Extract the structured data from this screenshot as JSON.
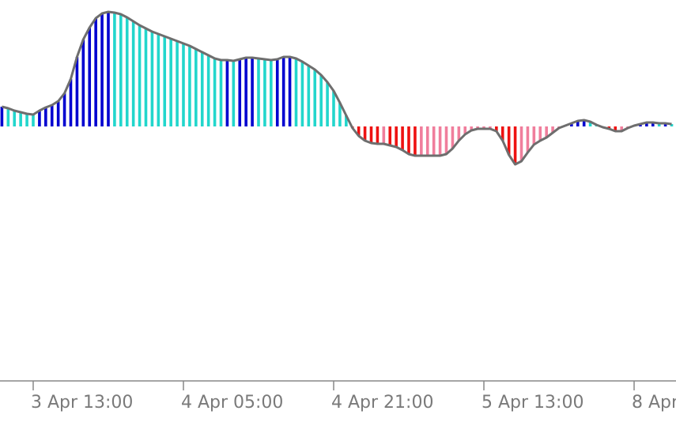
{
  "chart_data": {
    "type": "histogram-oscillator",
    "values": [
      25,
      23,
      20,
      18,
      16,
      15,
      20,
      24,
      27,
      32,
      42,
      60,
      88,
      110,
      125,
      137,
      143,
      145,
      144,
      142,
      138,
      133,
      128,
      124,
      120,
      117,
      114,
      111,
      108,
      105,
      102,
      98,
      94,
      90,
      86,
      84,
      84,
      83,
      85,
      87,
      87,
      86,
      85,
      84,
      85,
      88,
      88,
      86,
      82,
      77,
      72,
      65,
      56,
      45,
      30,
      14,
      -2,
      -12,
      -18,
      -21,
      -22,
      -22,
      -24,
      -26,
      -30,
      -35,
      -37,
      -37,
      -37,
      -37,
      -37,
      -35,
      -28,
      -18,
      -10,
      -5,
      -3,
      -3,
      -3,
      -6,
      -18,
      -36,
      -48,
      -44,
      -33,
      -23,
      -18,
      -14,
      -8,
      -2,
      1,
      4,
      7,
      8,
      6,
      2,
      -1,
      -3,
      -6,
      -6,
      -2,
      1,
      3,
      5,
      5,
      4,
      4,
      3
    ],
    "xticks": [
      {
        "value": 5,
        "label": "3 Apr 13:00"
      },
      {
        "value": 29,
        "label": "4 Apr 05:00"
      },
      {
        "value": 53,
        "label": "4 Apr 21:00"
      },
      {
        "value": 77,
        "label": "5 Apr 13:00"
      },
      {
        "value": 101,
        "label": "8 Apr"
      }
    ],
    "colors": {
      "positive_rising": "#0000d0",
      "positive_falling": "#22d6cc",
      "negative_falling": "#ee1111",
      "negative_rising": "#f07e9c",
      "line": "#6e6e6e",
      "axis": "#888888"
    }
  }
}
